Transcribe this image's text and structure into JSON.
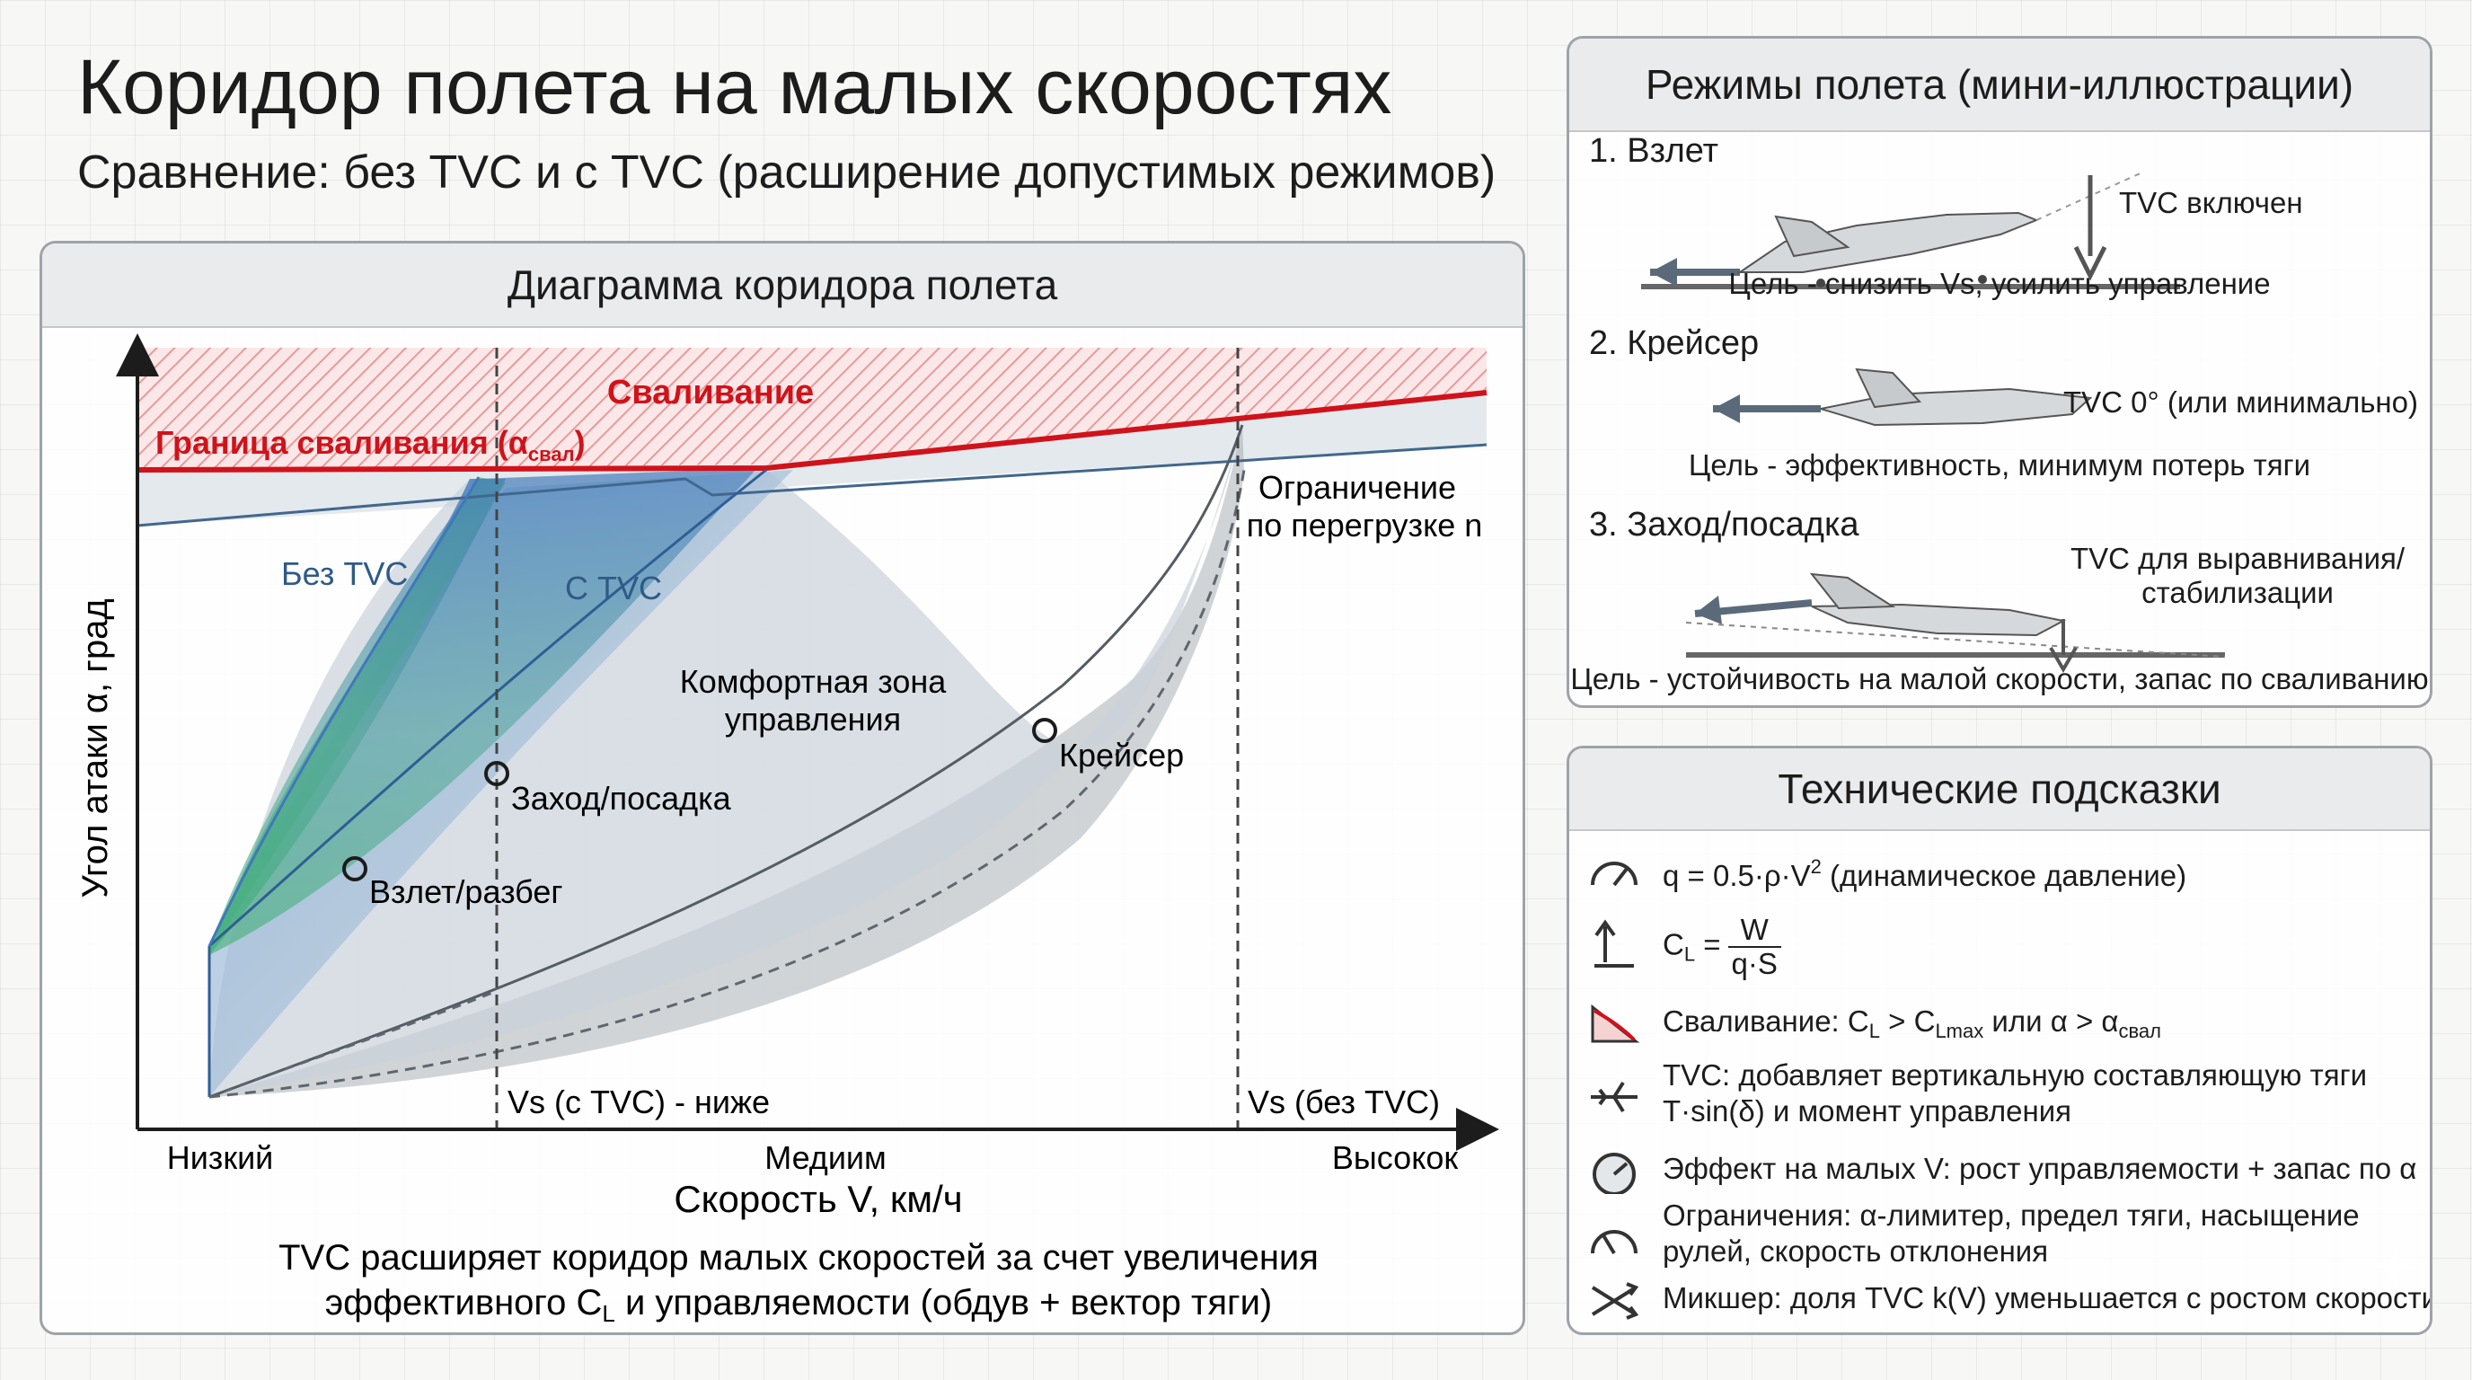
{
  "header": {
    "title": "Коридор полета на малых скоростях",
    "subtitle": "Сравнение: без TVC и с TVC (расширение допустимых режимов)"
  },
  "diagram": {
    "panel_title": "Диаграмма коридора полета",
    "zones": {
      "stall_zone": "Сваливание",
      "stall_boundary": "Граница сваливания (α",
      "stall_boundary_sub": "свал",
      "stall_boundary_close": ")",
      "load_limit_line1": "Ограничение",
      "load_limit_line2": "по перегрузке n",
      "without_tvc": "Без TVC",
      "with_tvc": "С TVC",
      "comfort_line1": "Комфортная зона",
      "comfort_line2": "управления"
    },
    "points": {
      "takeoff": "Взлет/разбег",
      "approach": "Заход/посадка",
      "cruise": "Крейсер"
    },
    "markers": {
      "vs_tvc": "Vs (с TVC) - ниже",
      "vs_no_tvc": "Vs (без TVC)"
    },
    "axes": {
      "y_label": "Угол атаки α, град",
      "x_label": "Скорость V, км/ч",
      "x_ticks": [
        "Низкий",
        "Медиим",
        "Высокок"
      ]
    },
    "caption_line1": "TVC расширяет коридор малых скоростей за счет увеличения",
    "caption_line2_a": "эффективного C",
    "caption_line2_sub": "L",
    "caption_line2_b": " и управляемости (обдув + вектор тяги)"
  },
  "modes": {
    "panel_title": "Режимы полета (мини-иллюстрации)",
    "items": [
      {
        "title": "1. Взлет",
        "note": "TVC включен",
        "goal": "Цель - снизить Vs, усилить управление"
      },
      {
        "title": "2. Крейсер",
        "note": "TVC 0° (или минимально)",
        "goal": "Цель - эффективность, минимум потерь тяги"
      },
      {
        "title": "3. Заход/посадка",
        "note_line1": "TVC для выравнивания/",
        "note_line2": "стабилизации",
        "goal": "Цель - устойчивость на малой скорости, запас по сваливанию"
      }
    ]
  },
  "tips": {
    "panel_title": "Технические подсказки",
    "items": [
      {
        "icon": "gauge-icon",
        "text_a": "q = 0.5·ρ·V",
        "text_sup": "2",
        "text_b": " (динамическое давление)"
      },
      {
        "icon": "lift-icon",
        "text_a": "C",
        "text_sub": "L",
        "text_eq": " =",
        "frac_num": "W",
        "frac_den": "q·S"
      },
      {
        "icon": "stall-icon",
        "text_a": "Сваливание: C",
        "text_sub1": "L",
        "text_b": " > C",
        "text_sub2": "Lmax",
        "text_c": " или α > α",
        "text_sub3": "свал"
      },
      {
        "icon": "jet-icon",
        "line1": "TVC: добавляет вертикальную составляющую тяги",
        "line2": "T·sin(δ) и момент управления"
      },
      {
        "icon": "speedometer-icon",
        "text": "Эффект на малых V: рост управляемости + запас по α"
      },
      {
        "icon": "limit-gauge-icon",
        "line1": "Ограничения: α-лимитер, предел тяги, насыщение",
        "line2": "рулей, скорость отклонения"
      },
      {
        "icon": "mixer-icon",
        "text": "Микшер: доля TVC k(V) уменьшается с ростом скорости"
      }
    ]
  },
  "colors": {
    "stall_red": "#d0121b",
    "tvc_blue": "#3f79b8",
    "green": "#3fae78",
    "grey_zone": "#9aa1a8"
  }
}
